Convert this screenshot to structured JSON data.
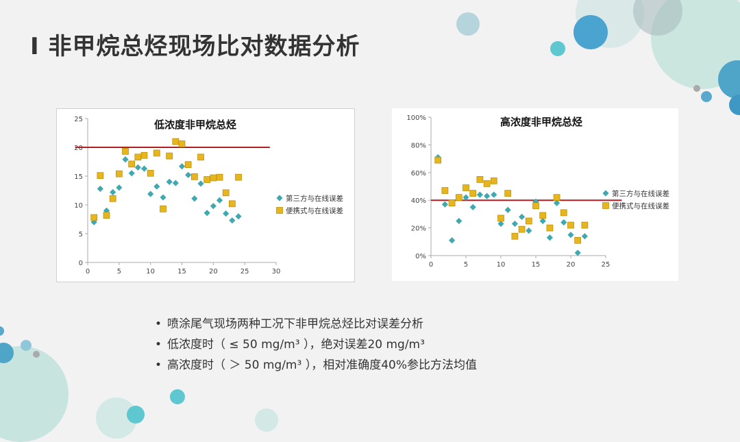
{
  "page": {
    "title": "I 非甲烷总烃现场比对数据分析",
    "bullets": [
      "喷涂尾气现场两种工况下非甲烷总烃比对误差分析",
      "低浓度时（ ≤ 50 mg/m³ ），绝对误差20 mg/m³",
      "高浓度时（ ＞ 50 mg/m³ ），相对准确度40%参比方法均值"
    ]
  },
  "colors": {
    "diamond": "#3fa8b0",
    "square": "#e7b51d",
    "square_edge": "#b88a00",
    "refline": "#b01f24"
  },
  "chart_data": [
    {
      "type": "scatter",
      "title": "低浓度非甲烷总烃",
      "xlim": [
        0,
        30
      ],
      "ylim": [
        0,
        25
      ],
      "xticks": [
        0,
        5,
        10,
        15,
        20,
        25,
        30
      ],
      "yticks": [
        0,
        5,
        10,
        15,
        20,
        25
      ],
      "ytick_labels": [
        "0",
        "5",
        "10",
        "15",
        "20",
        "25"
      ],
      "reference_line": {
        "y": 20,
        "x_range": [
          -2,
          29
        ]
      },
      "legend_position": "right",
      "series": [
        {
          "name": "第三方与在线误差",
          "marker": "diamond",
          "x": [
            1,
            2,
            3,
            4,
            5,
            6,
            7,
            8,
            9,
            10,
            11,
            12,
            13,
            14,
            15,
            16,
            17,
            18,
            19,
            20,
            21,
            22,
            23,
            24
          ],
          "y": [
            7.0,
            12.8,
            9.0,
            12.2,
            13.0,
            17.9,
            15.5,
            16.5,
            16.3,
            11.9,
            13.2,
            11.3,
            14.0,
            13.8,
            16.7,
            15.2,
            11.1,
            13.7,
            8.6,
            9.8,
            10.8,
            8.5,
            7.3,
            8.0
          ]
        },
        {
          "name": "便携式与在线误差",
          "marker": "square",
          "x": [
            1,
            2,
            3,
            4,
            5,
            6,
            7,
            8,
            9,
            10,
            11,
            12,
            13,
            14,
            15,
            16,
            17,
            18,
            19,
            20,
            21,
            22,
            23,
            24
          ],
          "y": [
            7.8,
            15.1,
            8.2,
            11.1,
            15.4,
            19.3,
            17.1,
            18.3,
            18.6,
            15.5,
            19.0,
            9.3,
            18.5,
            21.0,
            20.6,
            17.0,
            14.9,
            18.3,
            14.4,
            14.7,
            14.8,
            12.1,
            10.2,
            14.8
          ]
        }
      ]
    },
    {
      "type": "scatter",
      "title": "高浓度非甲烷总烃",
      "xlim": [
        0,
        25
      ],
      "ylim": [
        0,
        1.0
      ],
      "xticks": [
        0,
        5,
        10,
        15,
        20,
        25
      ],
      "yticks": [
        0,
        0.2,
        0.4,
        0.6,
        0.8,
        1.0
      ],
      "ytick_labels": [
        "0%",
        "20%",
        "40%",
        "60%",
        "80%",
        "100%"
      ],
      "reference_line": {
        "y": 0.4,
        "x_range": [
          0,
          27.3
        ]
      },
      "legend_position": "right",
      "series": [
        {
          "name": "第三方与在线误差",
          "marker": "diamond",
          "x": [
            1,
            2,
            3,
            4,
            5,
            6,
            7,
            8,
            9,
            10,
            11,
            12,
            13,
            14,
            15,
            16,
            17,
            18,
            19,
            20,
            21,
            22
          ],
          "y": [
            0.71,
            0.37,
            0.11,
            0.25,
            0.42,
            0.35,
            0.44,
            0.43,
            0.44,
            0.23,
            0.33,
            0.23,
            0.28,
            0.18,
            0.39,
            0.25,
            0.13,
            0.38,
            0.24,
            0.15,
            0.02,
            0.14
          ]
        },
        {
          "name": "便携式与在线误差",
          "marker": "square",
          "x": [
            1,
            2,
            3,
            4,
            5,
            6,
            7,
            8,
            9,
            10,
            11,
            12,
            13,
            14,
            15,
            16,
            17,
            18,
            19,
            20,
            21,
            22
          ],
          "y": [
            0.69,
            0.47,
            0.38,
            0.42,
            0.49,
            0.45,
            0.55,
            0.52,
            0.54,
            0.27,
            0.45,
            0.14,
            0.19,
            0.25,
            0.36,
            0.29,
            0.2,
            0.42,
            0.31,
            0.22,
            0.11,
            0.22
          ]
        }
      ]
    }
  ]
}
